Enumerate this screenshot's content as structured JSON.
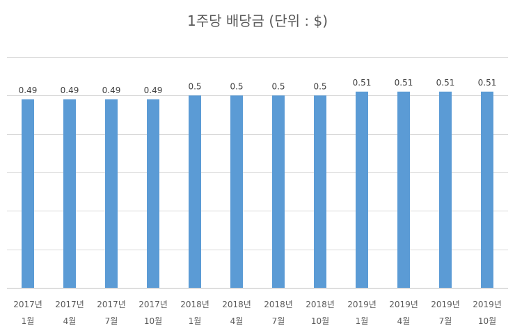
{
  "chart_data": {
    "type": "bar",
    "title": "1주당 배당금 (단위 : $)",
    "xlabel": "",
    "ylabel": "",
    "ylim": [
      0,
      0.6
    ],
    "grid": true,
    "legend": "none",
    "categories": [
      [
        "2017년",
        "1월"
      ],
      [
        "2017년",
        "4월"
      ],
      [
        "2017년",
        "7월"
      ],
      [
        "2017년",
        "10월"
      ],
      [
        "2018년",
        "1월"
      ],
      [
        "2018년",
        "4월"
      ],
      [
        "2018년",
        "7월"
      ],
      [
        "2018년",
        "10월"
      ],
      [
        "2019년",
        "1월"
      ],
      [
        "2019년",
        "4월"
      ],
      [
        "2019년",
        "7월"
      ],
      [
        "2019년",
        "10월"
      ]
    ],
    "values": [
      0.49,
      0.49,
      0.49,
      0.49,
      0.5,
      0.5,
      0.5,
      0.5,
      0.51,
      0.51,
      0.51,
      0.51
    ],
    "data_labels": [
      "0.49",
      "0.49",
      "0.49",
      "0.49",
      "0.5",
      "0.5",
      "0.5",
      "0.5",
      "0.51",
      "0.51",
      "0.51",
      "0.51"
    ],
    "bar_color": "#5b9bd5"
  }
}
